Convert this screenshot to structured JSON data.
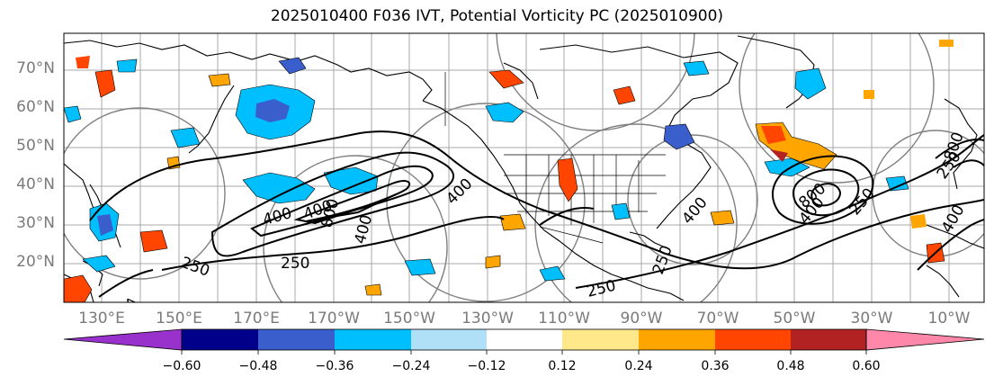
{
  "title": "2025010400 F036 IVT, Potential Vorticity PC (2025010900)",
  "latitude_labels": [
    "70°N",
    "60°N",
    "50°N",
    "40°N",
    "30°N",
    "20°N"
  ],
  "longitude_labels": [
    "130°E",
    "150°E",
    "170°E",
    "170°W",
    "150°W",
    "130°W",
    "110°W",
    "90°W",
    "70°W",
    "50°W",
    "30°W",
    "10°W"
  ],
  "contour_labels": [
    "250",
    "250",
    "250",
    "250",
    "250",
    "400",
    "400",
    "400",
    "400",
    "400",
    "400",
    "400",
    "800",
    "800",
    "400",
    "800",
    "250"
  ],
  "colorbar": {
    "tick_labels": [
      "−0.60",
      "−0.48",
      "−0.36",
      "−0.24",
      "−0.12",
      "0.12",
      "0.24",
      "0.36",
      "0.48",
      "0.60"
    ],
    "colors": [
      "#9932cc",
      "#00008b",
      "#3a5fcd",
      "#00bfff",
      "#b0e0f8",
      "#ffffff",
      "#ffe88a",
      "#ffa500",
      "#ff4500",
      "#b22222",
      "#ff88aa"
    ]
  },
  "colors": {
    "ivt_contour": "#000000",
    "graticule": "#9a9a9a",
    "circle": "#808080"
  }
}
